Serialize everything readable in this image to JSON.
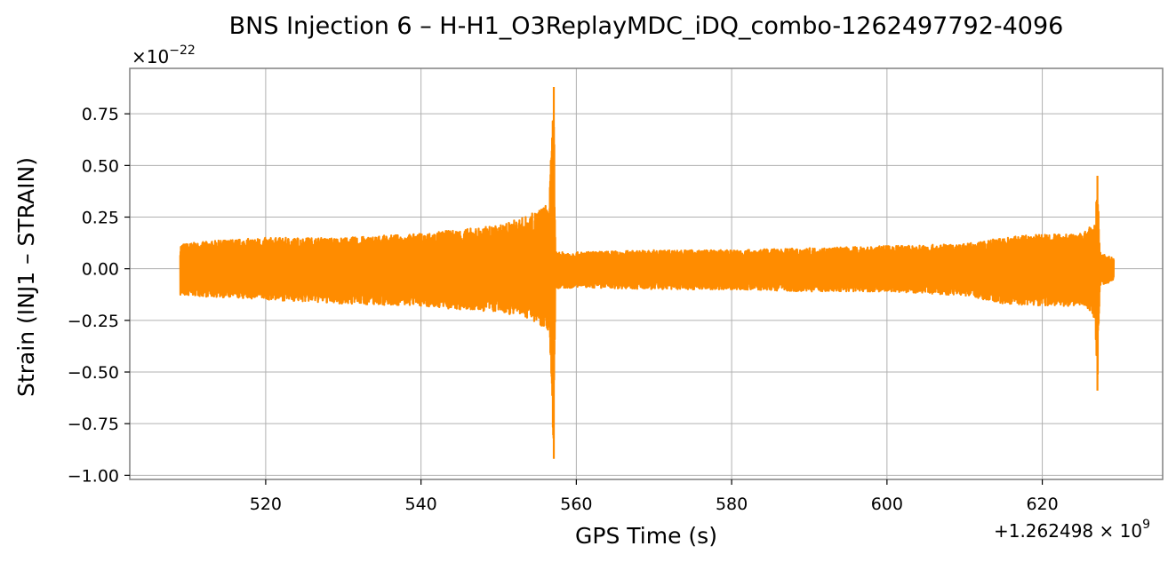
{
  "colors": {
    "series": "#ff8c00",
    "grid": "#b0b0b0",
    "axes": "#808080",
    "background": "#ffffff"
  },
  "chart_data": {
    "type": "line",
    "title": "BNS Injection 6 – H-H1_O3ReplayMDC_iDQ_combo-1262497792-4096",
    "xlabel": "GPS Time (s)",
    "ylabel": "Strain (INJ1 – STRAIN)",
    "y_multiplier_label": "×10",
    "y_multiplier_exponent": "−22",
    "x_offset_label": "+1.262498 × 10",
    "x_offset_exponent": "9",
    "xlim": [
      502.5,
      635.5
    ],
    "ylim": [
      -1.02,
      0.97
    ],
    "grid": true,
    "x_ticks": [
      {
        "value": 520,
        "label": "520"
      },
      {
        "value": 540,
        "label": "540"
      },
      {
        "value": 560,
        "label": "560"
      },
      {
        "value": 580,
        "label": "580"
      },
      {
        "value": 600,
        "label": "600"
      },
      {
        "value": 620,
        "label": "620"
      }
    ],
    "y_ticks": [
      {
        "value": 0.75,
        "label": "0.75"
      },
      {
        "value": 0.5,
        "label": "0.50"
      },
      {
        "value": 0.25,
        "label": "0.25"
      },
      {
        "value": 0.0,
        "label": "0.00"
      },
      {
        "value": -0.25,
        "label": "−0.25"
      },
      {
        "value": -0.5,
        "label": "−0.50"
      },
      {
        "value": -0.75,
        "label": "−0.75"
      },
      {
        "value": -1.0,
        "label": "−1.00"
      }
    ],
    "series": [
      {
        "color": "#ff8c00",
        "x_start": 509.0,
        "x_end": 629.2,
        "envelope": [
          {
            "x": 509.0,
            "upper": 0.12,
            "lower": -0.13
          },
          {
            "x": 515.0,
            "upper": 0.14,
            "lower": -0.14
          },
          {
            "x": 520.0,
            "upper": 0.15,
            "lower": -0.15
          },
          {
            "x": 530.0,
            "upper": 0.15,
            "lower": -0.17
          },
          {
            "x": 540.0,
            "upper": 0.17,
            "lower": -0.18
          },
          {
            "x": 545.0,
            "upper": 0.19,
            "lower": -0.2
          },
          {
            "x": 550.0,
            "upper": 0.21,
            "lower": -0.21
          },
          {
            "x": 554.0,
            "upper": 0.26,
            "lower": -0.24
          },
          {
            "x": 556.5,
            "upper": 0.32,
            "lower": -0.3
          },
          {
            "x": 557.1,
            "upper": 0.88,
            "lower": -0.92
          },
          {
            "x": 557.3,
            "upper": 0.08,
            "lower": -0.1
          },
          {
            "x": 560.0,
            "upper": 0.08,
            "lower": -0.09
          },
          {
            "x": 570.0,
            "upper": 0.09,
            "lower": -0.1
          },
          {
            "x": 580.0,
            "upper": 0.09,
            "lower": -0.1
          },
          {
            "x": 590.0,
            "upper": 0.1,
            "lower": -0.11
          },
          {
            "x": 600.0,
            "upper": 0.11,
            "lower": -0.11
          },
          {
            "x": 610.0,
            "upper": 0.12,
            "lower": -0.13
          },
          {
            "x": 615.0,
            "upper": 0.15,
            "lower": -0.17
          },
          {
            "x": 620.0,
            "upper": 0.17,
            "lower": -0.18
          },
          {
            "x": 625.0,
            "upper": 0.17,
            "lower": -0.18
          },
          {
            "x": 626.8,
            "upper": 0.22,
            "lower": -0.25
          },
          {
            "x": 627.1,
            "upper": 0.45,
            "lower": -0.59
          },
          {
            "x": 627.4,
            "upper": 0.08,
            "lower": -0.08
          },
          {
            "x": 629.2,
            "upper": 0.05,
            "lower": -0.06
          }
        ]
      }
    ]
  }
}
